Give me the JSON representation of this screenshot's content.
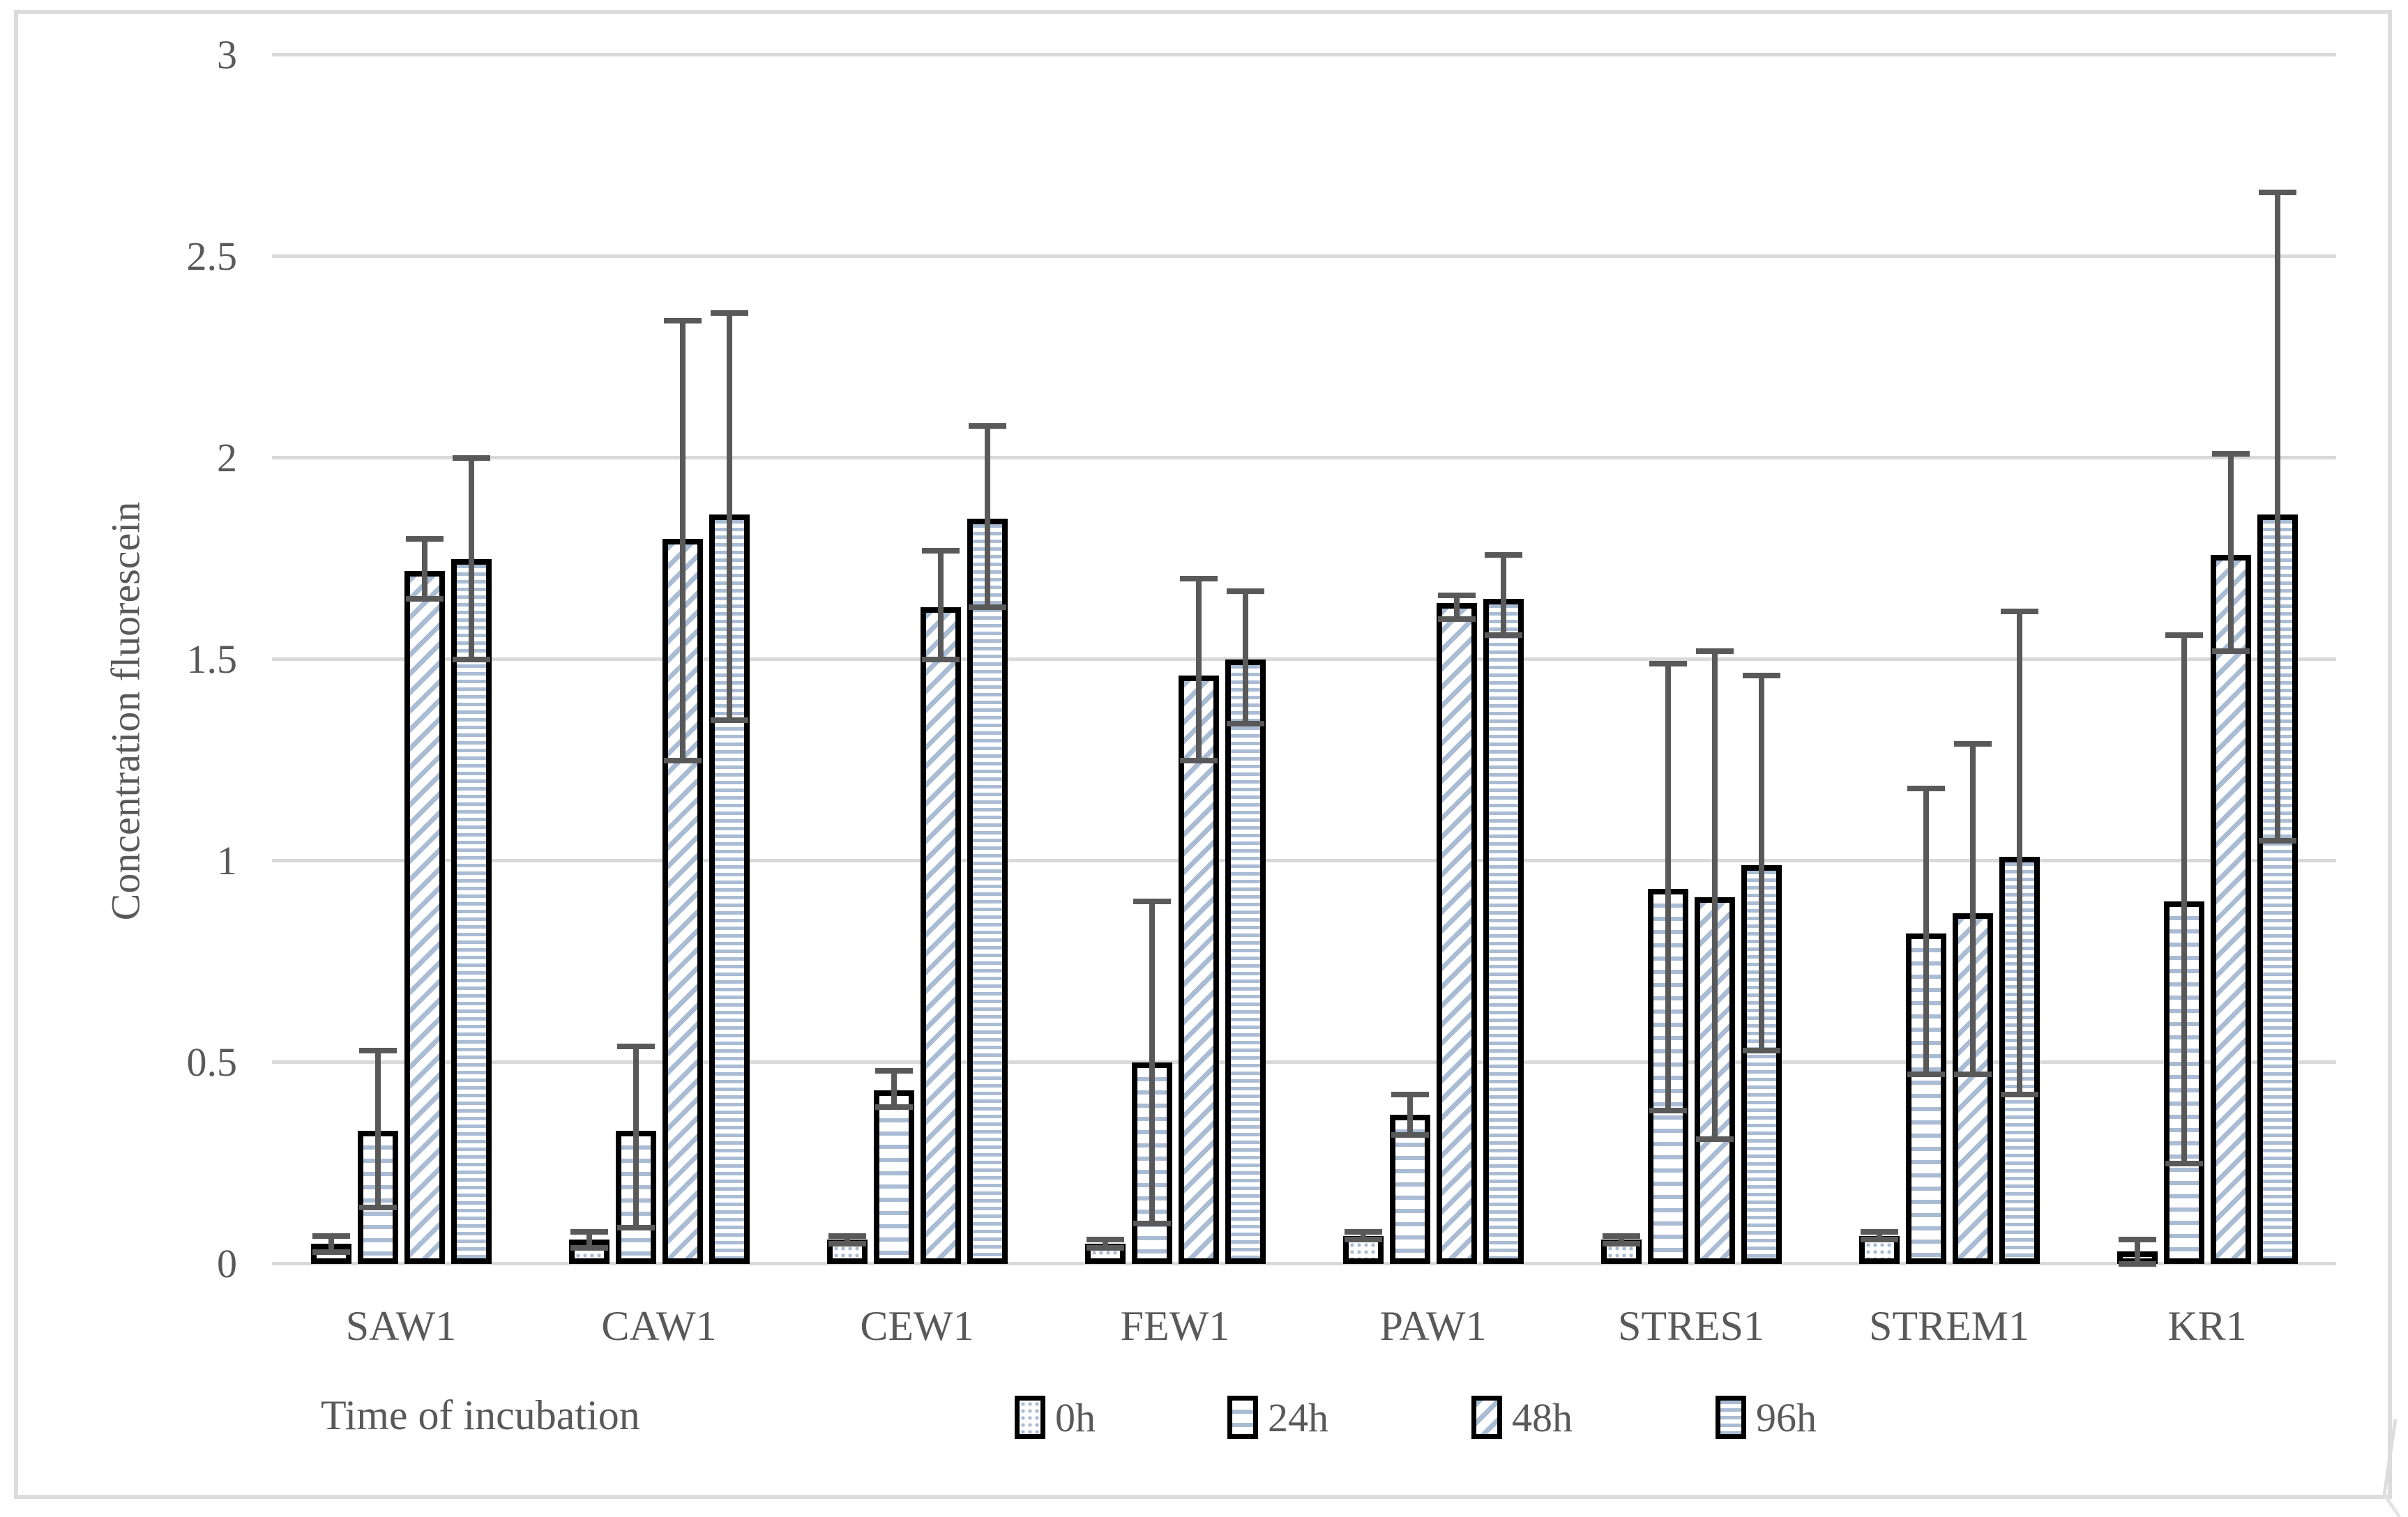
{
  "figure": {
    "y_axis_title": "Concentration fluorescein",
    "x_axis_title": "Time of incubation"
  },
  "legend": {
    "items": [
      {
        "label": "0h",
        "pattern": "dots"
      },
      {
        "label": "24h",
        "pattern": "hlines_wide"
      },
      {
        "label": "48h",
        "pattern": "diagonal"
      },
      {
        "label": "96h",
        "pattern": "hlines_dense"
      }
    ]
  },
  "colors": {
    "pattern_blue": "#a9bcd4",
    "bar_border": "#000000",
    "error_bar": "#595959",
    "gridline": "#d9d9d9",
    "text": "#595959",
    "frame": "#dcdcdc"
  },
  "chart_data": {
    "type": "bar",
    "title": "",
    "categories": [
      "SAW1",
      "CAW1",
      "CEW1",
      "FEW1",
      "PAW1",
      "STRES1",
      "STREM1",
      "KR1"
    ],
    "series": [
      {
        "name": "0h",
        "pattern": "dots",
        "values": [
          0.05,
          0.06,
          0.06,
          0.05,
          0.07,
          0.06,
          0.07,
          0.03
        ],
        "error_low": [
          0.03,
          0.04,
          0.05,
          0.04,
          0.06,
          0.05,
          0.06,
          0.0
        ],
        "error_high": [
          0.07,
          0.08,
          0.07,
          0.06,
          0.08,
          0.07,
          0.08,
          0.06
        ]
      },
      {
        "name": "24h",
        "pattern": "hlines_wide",
        "values": [
          0.33,
          0.33,
          0.43,
          0.5,
          0.37,
          0.93,
          0.82,
          0.9
        ],
        "error_low": [
          0.14,
          0.09,
          0.39,
          0.1,
          0.32,
          0.38,
          0.47,
          0.25
        ],
        "error_high": [
          0.53,
          0.54,
          0.48,
          0.9,
          0.42,
          1.49,
          1.18,
          1.56
        ]
      },
      {
        "name": "48h",
        "pattern": "diagonal",
        "values": [
          1.72,
          1.8,
          1.63,
          1.46,
          1.64,
          0.91,
          0.87,
          1.76
        ],
        "error_low": [
          1.65,
          1.25,
          1.5,
          1.25,
          1.6,
          0.31,
          0.47,
          1.52
        ],
        "error_high": [
          1.8,
          2.34,
          1.77,
          1.7,
          1.66,
          1.52,
          1.29,
          2.01
        ]
      },
      {
        "name": "96h",
        "pattern": "hlines_dense",
        "values": [
          1.75,
          1.86,
          1.85,
          1.5,
          1.65,
          0.99,
          1.01,
          1.86
        ],
        "error_low": [
          1.5,
          1.35,
          1.63,
          1.34,
          1.56,
          0.53,
          0.42,
          1.05
        ],
        "error_high": [
          2.0,
          2.36,
          2.08,
          1.67,
          1.76,
          1.46,
          1.62,
          2.66
        ]
      }
    ],
    "xlabel": "Time of incubation",
    "ylabel": "Concentration fluorescein",
    "ylim": [
      0,
      3
    ],
    "yticks": [
      0,
      0.5,
      1,
      1.5,
      2,
      2.5,
      3
    ],
    "ytick_labels": [
      "0",
      "0.5",
      "1",
      "1.5",
      "2",
      "2.5",
      "3"
    ],
    "grid": true,
    "legend_position": "bottom"
  }
}
